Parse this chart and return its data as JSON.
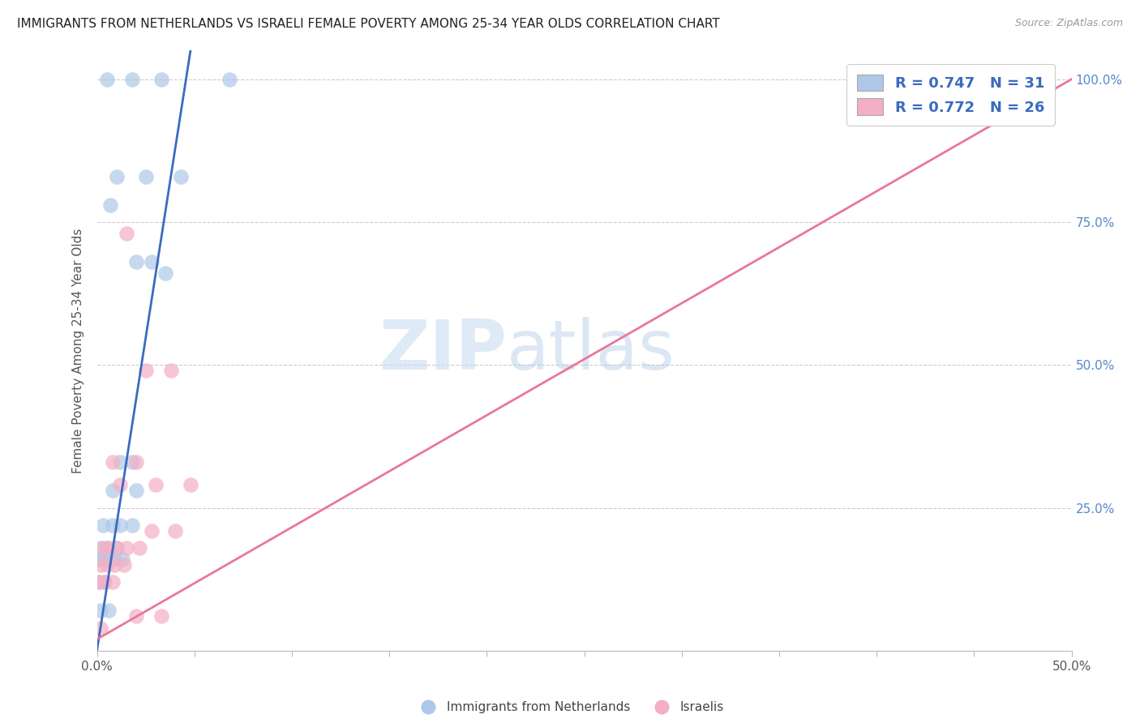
{
  "title": "IMMIGRANTS FROM NETHERLANDS VS ISRAELI FEMALE POVERTY AMONG 25-34 YEAR OLDS CORRELATION CHART",
  "source": "Source: ZipAtlas.com",
  "ylabel": "Female Poverty Among 25-34 Year Olds",
  "xlim": [
    0.0,
    0.5
  ],
  "ylim": [
    0.0,
    1.05
  ],
  "xticks": [
    0.0,
    0.05,
    0.1,
    0.15,
    0.2,
    0.25,
    0.3,
    0.35,
    0.4,
    0.45,
    0.5
  ],
  "xticklabels_show": {
    "0.0": "0.0%",
    "0.5": "50.0%"
  },
  "yticks": [
    0.0,
    0.25,
    0.5,
    0.75,
    1.0
  ],
  "yticklabels": [
    "",
    "25.0%",
    "50.0%",
    "75.0%",
    "100.0%"
  ],
  "watermark_zip": "ZIP",
  "watermark_atlas": "atlas",
  "blue_R": "0.747",
  "blue_N": "31",
  "pink_R": "0.772",
  "pink_N": "26",
  "blue_color": "#adc8e8",
  "pink_color": "#f5afc4",
  "blue_line_color": "#3a6bbf",
  "pink_line_color": "#e8789a",
  "right_axis_color": "#5588cc",
  "text_dark": "#333333",
  "legend_text_color": "#333333",
  "legend_num_color": "#3a6bbf",
  "blue_points": [
    [
      0.005,
      1.0
    ],
    [
      0.018,
      1.0
    ],
    [
      0.033,
      1.0
    ],
    [
      0.068,
      1.0
    ],
    [
      0.01,
      0.83
    ],
    [
      0.025,
      0.83
    ],
    [
      0.043,
      0.83
    ],
    [
      0.007,
      0.78
    ],
    [
      0.02,
      0.68
    ],
    [
      0.028,
      0.68
    ],
    [
      0.035,
      0.66
    ],
    [
      0.012,
      0.33
    ],
    [
      0.018,
      0.33
    ],
    [
      0.008,
      0.28
    ],
    [
      0.02,
      0.28
    ],
    [
      0.003,
      0.22
    ],
    [
      0.008,
      0.22
    ],
    [
      0.012,
      0.22
    ],
    [
      0.018,
      0.22
    ],
    [
      0.002,
      0.18
    ],
    [
      0.005,
      0.18
    ],
    [
      0.01,
      0.18
    ],
    [
      0.001,
      0.16
    ],
    [
      0.003,
      0.16
    ],
    [
      0.006,
      0.16
    ],
    [
      0.009,
      0.16
    ],
    [
      0.013,
      0.16
    ],
    [
      0.001,
      0.12
    ],
    [
      0.004,
      0.12
    ],
    [
      0.002,
      0.07
    ],
    [
      0.006,
      0.07
    ]
  ],
  "pink_points": [
    [
      0.42,
      1.0
    ],
    [
      0.015,
      0.73
    ],
    [
      0.025,
      0.49
    ],
    [
      0.038,
      0.49
    ],
    [
      0.008,
      0.33
    ],
    [
      0.02,
      0.33
    ],
    [
      0.012,
      0.29
    ],
    [
      0.03,
      0.29
    ],
    [
      0.048,
      0.29
    ],
    [
      0.028,
      0.21
    ],
    [
      0.04,
      0.21
    ],
    [
      0.003,
      0.18
    ],
    [
      0.006,
      0.18
    ],
    [
      0.01,
      0.18
    ],
    [
      0.015,
      0.18
    ],
    [
      0.022,
      0.18
    ],
    [
      0.002,
      0.15
    ],
    [
      0.005,
      0.15
    ],
    [
      0.009,
      0.15
    ],
    [
      0.014,
      0.15
    ],
    [
      0.001,
      0.12
    ],
    [
      0.004,
      0.12
    ],
    [
      0.008,
      0.12
    ],
    [
      0.02,
      0.06
    ],
    [
      0.033,
      0.06
    ],
    [
      0.002,
      0.04
    ]
  ],
  "blue_trendline": [
    [
      0.0,
      0.0
    ],
    [
      0.048,
      1.05
    ]
  ],
  "pink_trendline": [
    [
      0.0,
      0.02
    ],
    [
      0.5,
      1.0
    ]
  ],
  "legend_label_blue": "Immigrants from Netherlands",
  "legend_label_pink": "Israelis"
}
